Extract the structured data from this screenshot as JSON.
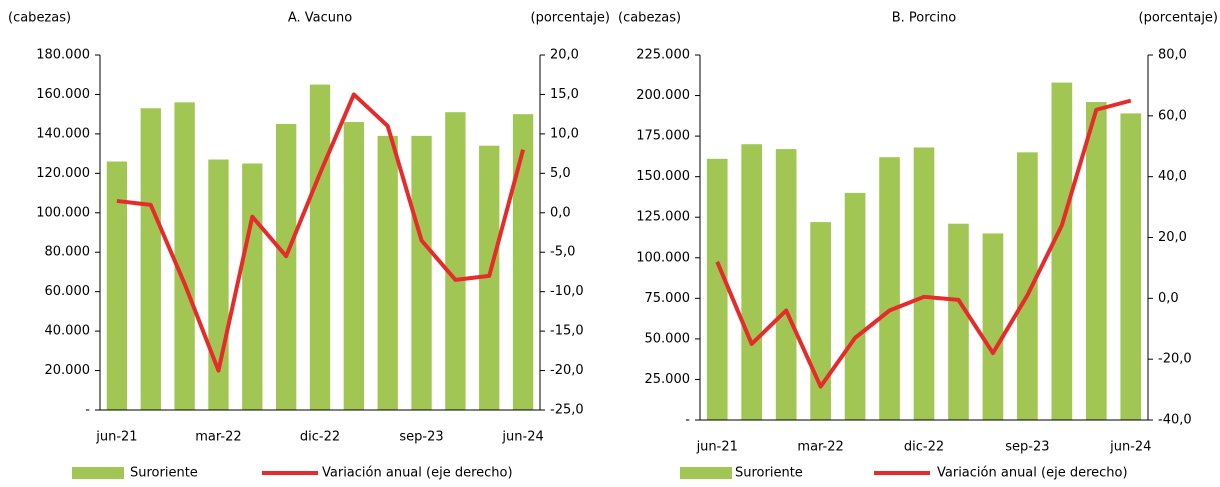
{
  "chart_data": [
    {
      "type": "combo",
      "title": "A. Vacuno",
      "ylabel": "(cabezas)",
      "y2label": "(porcentaje)",
      "categories": [
        "jun-21",
        null,
        null,
        "mar-22",
        null,
        null,
        "dic-22",
        null,
        null,
        "sep-23",
        null,
        null,
        "jun-24"
      ],
      "series": [
        {
          "name": "Suroriente",
          "color": "#a2c653",
          "values": [
            126000,
            153000,
            156000,
            127000,
            125000,
            145000,
            165000,
            146000,
            139000,
            139000,
            151000,
            134000,
            150000
          ]
        },
        {
          "name": "Variación anual (eje derecho)",
          "color": "#e52b2b",
          "axis": "y2",
          "values": [
            1.5,
            1.0,
            -9.0,
            -20.0,
            -0.5,
            -5.5,
            5.0,
            15.0,
            11.0,
            -3.5,
            -8.5,
            -8.0,
            8.0
          ]
        }
      ],
      "ylim": [
        0,
        180000
      ],
      "yticks": [
        {
          "value": 0,
          "label": "-"
        },
        {
          "value": 20000,
          "label": "20.000"
        },
        {
          "value": 40000,
          "label": "40.000"
        },
        {
          "value": 60000,
          "label": "60.000"
        },
        {
          "value": 80000,
          "label": "80.000"
        },
        {
          "value": 100000,
          "label": "100.000"
        },
        {
          "value": 120000,
          "label": "120.000"
        },
        {
          "value": 140000,
          "label": "140.000"
        },
        {
          "value": 160000,
          "label": "160.000"
        },
        {
          "value": 180000,
          "label": "180.000"
        }
      ],
      "y2lim": [
        -25,
        20
      ],
      "y2ticks": [
        {
          "value": -25,
          "label": "-25,0"
        },
        {
          "value": -20,
          "label": "-20,0"
        },
        {
          "value": -15,
          "label": "-15,0"
        },
        {
          "value": -10,
          "label": "-10,0"
        },
        {
          "value": -5,
          "label": "-5,0"
        },
        {
          "value": 0,
          "label": "0,0"
        },
        {
          "value": 5,
          "label": "5,0"
        },
        {
          "value": 10,
          "label": "10,0"
        },
        {
          "value": 15,
          "label": "15,0"
        },
        {
          "value": 20,
          "label": "20,0"
        }
      ]
    },
    {
      "type": "combo",
      "title": "B. Porcino",
      "ylabel": "(cabezas)",
      "y2label": "(porcentaje)",
      "categories": [
        "jun-21",
        null,
        null,
        "mar-22",
        null,
        null,
        "dic-22",
        null,
        null,
        "sep-23",
        null,
        null,
        "jun-24"
      ],
      "series": [
        {
          "name": "Suroriente",
          "color": "#a2c653",
          "values": [
            161000,
            170000,
            167000,
            122000,
            140000,
            162000,
            168000,
            121000,
            115000,
            165000,
            208000,
            196000,
            189000
          ]
        },
        {
          "name": "Variación anual (eje derecho)",
          "color": "#e52b2b",
          "axis": "y2",
          "values": [
            12,
            -15,
            -4,
            -29,
            -13,
            -4,
            0.5,
            -0.5,
            -18,
            1,
            24,
            62,
            65
          ]
        }
      ],
      "ylim": [
        0,
        225000
      ],
      "yticks": [
        {
          "value": 0,
          "label": "-"
        },
        {
          "value": 25000,
          "label": "25.000"
        },
        {
          "value": 50000,
          "label": "50.000"
        },
        {
          "value": 75000,
          "label": "75.000"
        },
        {
          "value": 100000,
          "label": "100.000"
        },
        {
          "value": 125000,
          "label": "125.000"
        },
        {
          "value": 150000,
          "label": "150.000"
        },
        {
          "value": 175000,
          "label": "175.000"
        },
        {
          "value": 200000,
          "label": "200.000"
        },
        {
          "value": 225000,
          "label": "225.000"
        }
      ],
      "y2lim": [
        -40,
        80
      ],
      "y2ticks": [
        {
          "value": -40,
          "label": "-40,0"
        },
        {
          "value": -20,
          "label": "-20,0"
        },
        {
          "value": 0,
          "label": "0,0"
        },
        {
          "value": 20,
          "label": "20,0"
        },
        {
          "value": 40,
          "label": "40,0"
        },
        {
          "value": 60,
          "label": "60,0"
        },
        {
          "value": 80,
          "label": "80,0"
        }
      ]
    }
  ]
}
